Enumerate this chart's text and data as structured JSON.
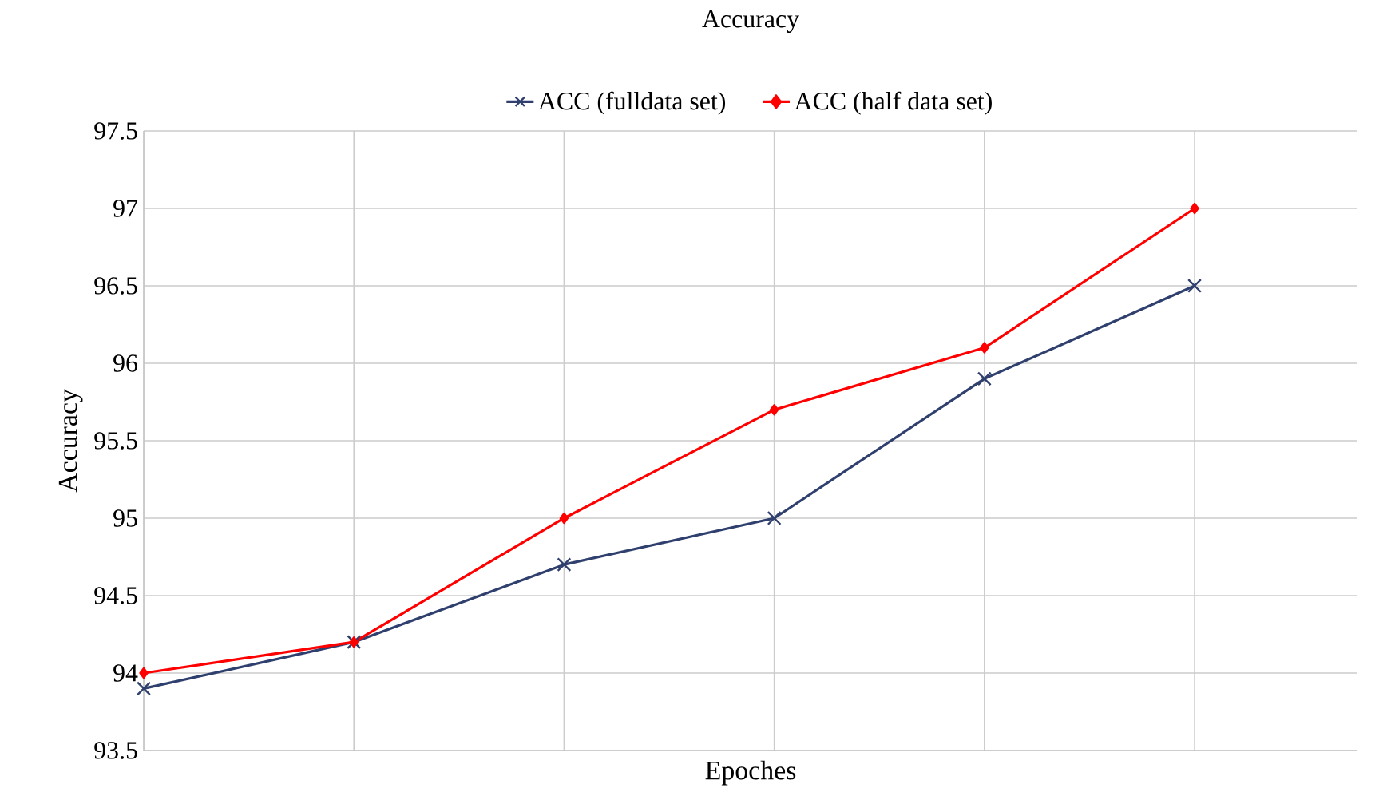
{
  "chart_data": {
    "type": "line",
    "title": "Accuracy",
    "xlabel": "Epoches",
    "ylabel": "Accuracy",
    "categories": [
      null,
      null,
      null,
      null,
      null,
      null
    ],
    "series": [
      {
        "name": "ACC (fulldata set)",
        "color": "#2f3f6e",
        "marker": "cross",
        "values": [
          93.9,
          94.2,
          94.7,
          95.0,
          95.9,
          96.5
        ]
      },
      {
        "name": "ACC (half data set)",
        "color": "#ff0000",
        "marker": "diamond",
        "values": [
          94.0,
          94.2,
          95.0,
          95.7,
          96.1,
          97.0
        ]
      }
    ],
    "ylim": [
      93.5,
      97.5
    ],
    "yticks": [
      93.5,
      94,
      94.5,
      95,
      95.5,
      96,
      96.5,
      97,
      97.5
    ],
    "grid": true,
    "legend": "top"
  }
}
